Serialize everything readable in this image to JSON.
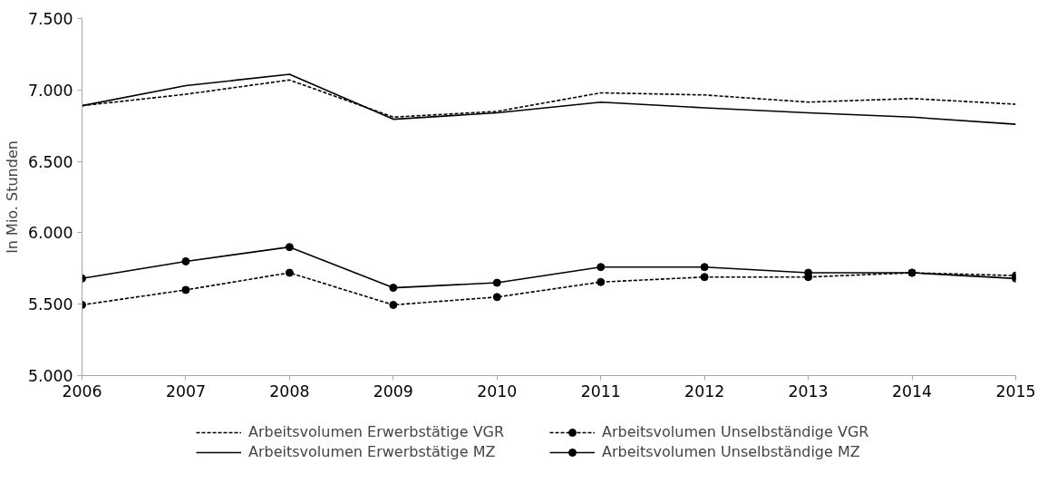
{
  "chart_data": {
    "type": "line",
    "ylabel": "In Mio. Stunden",
    "x": [
      2006,
      2007,
      2008,
      2009,
      2010,
      2011,
      2012,
      2013,
      2014,
      2015
    ],
    "xlim": [
      2006,
      2015
    ],
    "xticks": [
      2006,
      2007,
      2008,
      2009,
      2010,
      2011,
      2012,
      2013,
      2014,
      2015
    ],
    "ylim": [
      5000,
      7500
    ],
    "yticks": [
      {
        "value": 5000,
        "label": "5.000"
      },
      {
        "value": 5500,
        "label": "5.500"
      },
      {
        "value": 6000,
        "label": "6.000"
      },
      {
        "value": 6500,
        "label": "6.500"
      },
      {
        "value": 7000,
        "label": "7.000"
      },
      {
        "value": 7500,
        "label": "7.500"
      }
    ],
    "grid": false,
    "legend": "bottom",
    "series": [
      {
        "name": "Arbeitsvolumen Erwerbstätige VGR",
        "color": "#000000",
        "line_style": "dashed",
        "marker": "none",
        "values": [
          6890,
          6970,
          7070,
          6810,
          6850,
          6980,
          6965,
          6915,
          6940,
          6900
        ]
      },
      {
        "name": "Arbeitsvolumen Unselbständige VGR",
        "color": "#000000",
        "line_style": "dashed",
        "marker": "circle",
        "values": [
          5495,
          5600,
          5720,
          5495,
          5550,
          5655,
          5690,
          5690,
          5720,
          5700
        ]
      },
      {
        "name": "Arbeitsvolumen Erwerbstätige MZ",
        "color": "#000000",
        "line_style": "solid",
        "marker": "none",
        "values": [
          6890,
          7030,
          7110,
          6795,
          6840,
          6915,
          6875,
          6840,
          6810,
          6760
        ]
      },
      {
        "name": "Arbeitsvolumen Unselbständige MZ",
        "color": "#000000",
        "line_style": "solid",
        "marker": "circle",
        "values": [
          5680,
          5800,
          5900,
          5615,
          5650,
          5760,
          5760,
          5720,
          5720,
          5680
        ]
      }
    ]
  }
}
